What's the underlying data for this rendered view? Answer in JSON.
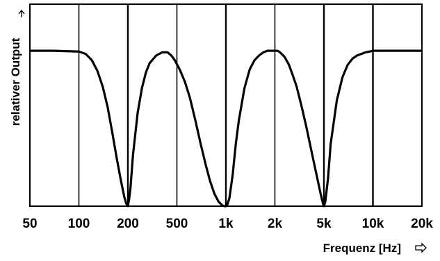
{
  "chart_data": {
    "type": "line",
    "title": "",
    "xlabel": "Frequenz [Hz]",
    "ylabel": "relativer Output",
    "x_scale": "log",
    "xlim": [
      50,
      20000
    ],
    "x_tick_values": [
      50,
      100,
      200,
      500,
      1000,
      2000,
      5000,
      10000,
      20000
    ],
    "x_tick_labels": [
      "50",
      "100",
      "200",
      "500",
      "1k",
      "2k",
      "5k",
      "10k",
      "20k"
    ],
    "y_ticks_shown": false,
    "ylim": [
      0,
      1.3
    ],
    "vertical_gridlines": true,
    "series": [
      {
        "color": "#000000",
        "x": [
          50,
          70,
          100,
          110,
          120,
          130,
          140,
          150,
          160,
          170,
          180,
          190,
          195,
          200,
          205,
          210,
          220,
          240,
          260,
          280,
          300,
          340,
          380,
          420,
          450,
          480,
          520,
          560,
          600,
          650,
          700,
          750,
          800,
          850,
          900,
          950,
          980,
          1000,
          1020,
          1050,
          1100,
          1150,
          1200,
          1300,
          1400,
          1500,
          1600,
          1700,
          1800,
          1900,
          2000,
          2100,
          2200,
          2400,
          2600,
          2800,
          3000,
          3300,
          3600,
          3900,
          4200,
          4500,
          4700,
          4900,
          5000,
          5100,
          5300,
          5500,
          6000,
          6500,
          7000,
          7500,
          8000,
          8500,
          9000,
          9500,
          10000,
          12000,
          15000,
          20000
        ],
        "y": [
          1.0,
          1.0,
          0.995,
          0.98,
          0.94,
          0.87,
          0.77,
          0.64,
          0.48,
          0.32,
          0.18,
          0.06,
          0.02,
          0.0,
          0.05,
          0.12,
          0.33,
          0.6,
          0.76,
          0.86,
          0.92,
          0.97,
          0.99,
          0.99,
          0.97,
          0.94,
          0.88,
          0.8,
          0.7,
          0.55,
          0.4,
          0.27,
          0.16,
          0.08,
          0.03,
          0.005,
          0.0,
          0.0,
          0.01,
          0.05,
          0.2,
          0.4,
          0.55,
          0.76,
          0.88,
          0.94,
          0.97,
          0.99,
          1.0,
          1.0,
          1.0,
          1.0,
          0.99,
          0.96,
          0.91,
          0.84,
          0.77,
          0.64,
          0.51,
          0.38,
          0.26,
          0.15,
          0.08,
          0.02,
          0.0,
          0.03,
          0.18,
          0.4,
          0.68,
          0.83,
          0.91,
          0.95,
          0.97,
          0.98,
          0.99,
          0.995,
          1.0,
          1.0,
          1.0,
          1.0
        ]
      }
    ]
  }
}
